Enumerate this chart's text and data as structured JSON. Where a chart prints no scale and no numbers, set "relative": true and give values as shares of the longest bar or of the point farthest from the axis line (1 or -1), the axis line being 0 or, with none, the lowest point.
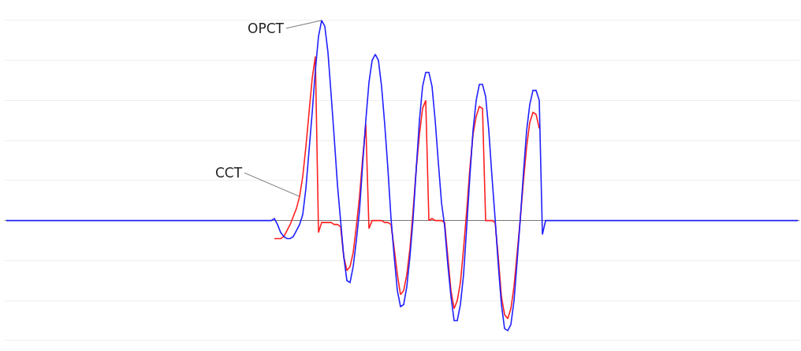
{
  "chart_data": {
    "type": "line",
    "relative": true,
    "grid": "y",
    "legend": false,
    "tick_labels": false,
    "marker": "none",
    "line_style": "solid",
    "categories": [
      null,
      null,
      null,
      null,
      null,
      null,
      null,
      null,
      null,
      null,
      null,
      null,
      null,
      null,
      null,
      null,
      null,
      null,
      null,
      null,
      null,
      null,
      null,
      null,
      null,
      null,
      null,
      null,
      null,
      null,
      null,
      null,
      null,
      null,
      null,
      null,
      null,
      null,
      null,
      null,
      null,
      null,
      null,
      null,
      null,
      null,
      null,
      null,
      null,
      null,
      null,
      null,
      null,
      null,
      null,
      null,
      null,
      null,
      null,
      null,
      null,
      null,
      null,
      null,
      null,
      null,
      null,
      null,
      null,
      null,
      null,
      null,
      null,
      null,
      null,
      null,
      null,
      null,
      null,
      null,
      null,
      null,
      null,
      null,
      null,
      null,
      null,
      null,
      null,
      null,
      null,
      null,
      null,
      null,
      null,
      null,
      null,
      null,
      null,
      null,
      null,
      null,
      null,
      null,
      null,
      null,
      null,
      null,
      null,
      null,
      null,
      null,
      null,
      null,
      null,
      null,
      null,
      null,
      null,
      null,
      null,
      null,
      null,
      null,
      null,
      null,
      null,
      null,
      null,
      null,
      null,
      null,
      null,
      null,
      null,
      null,
      null,
      null,
      null,
      null,
      null,
      null,
      null,
      null,
      null,
      null,
      null,
      null,
      null,
      null,
      null,
      null,
      null,
      null,
      null,
      null,
      null,
      null,
      null,
      null,
      null,
      null,
      null,
      null,
      null,
      null,
      null,
      null,
      null,
      null,
      null,
      null,
      null,
      null,
      null,
      null,
      null,
      null,
      null,
      null,
      null,
      null,
      null,
      null,
      null,
      null,
      null,
      null,
      null,
      null,
      null,
      null,
      null,
      null,
      null,
      null,
      null,
      null,
      null,
      null,
      null,
      null,
      null,
      null,
      null,
      null,
      null,
      null,
      null,
      null,
      null,
      null,
      null,
      null,
      null,
      null,
      null,
      null,
      null,
      null,
      null,
      null,
      null,
      null,
      null,
      null,
      null,
      null,
      null,
      null,
      null,
      null,
      null,
      null,
      null,
      null,
      null,
      null,
      null,
      null,
      null,
      null,
      null,
      null,
      null,
      null,
      null,
      null,
      null,
      null,
      null,
      null
    ],
    "series": [
      {
        "name": "OPCT",
        "color": "#2020ff",
        "values": [
          0,
          0,
          0,
          0,
          0,
          0,
          0,
          0,
          0,
          0,
          0,
          0,
          0,
          0,
          0,
          0,
          0,
          0,
          0,
          0,
          0,
          0,
          0,
          0,
          0,
          0,
          0,
          0,
          0,
          0,
          0,
          0,
          0,
          0,
          0,
          0,
          0,
          0,
          0,
          0,
          0,
          0,
          0,
          0,
          0,
          0,
          0,
          0,
          0,
          0,
          0,
          0,
          0,
          0,
          0,
          0,
          0,
          0,
          0,
          0,
          0,
          0,
          0,
          0,
          0,
          0,
          0,
          0,
          0,
          0,
          0,
          0,
          0,
          0,
          0,
          0,
          0,
          0,
          0,
          0,
          0,
          0,
          0,
          0,
          0,
          0.01,
          -0.02,
          -0.06,
          -0.08,
          -0.09,
          -0.09,
          -0.08,
          -0.05,
          -0.02,
          0.03,
          0.16,
          0.35,
          0.54,
          0.75,
          0.92,
          1,
          0.97,
          0.84,
          0.63,
          0.41,
          0.18,
          0,
          -0.18,
          -0.3,
          -0.31,
          -0.23,
          -0.1,
          0.05,
          0.28,
          0.5,
          0.69,
          0.8,
          0.83,
          0.8,
          0.67,
          0.48,
          0.26,
          0.01,
          -0.18,
          -0.35,
          -0.43,
          -0.42,
          -0.33,
          -0.18,
          0.01,
          0.26,
          0.5,
          0.67,
          0.74,
          0.74,
          0.67,
          0.5,
          0.29,
          0.09,
          -0.03,
          -0.22,
          -0.38,
          -0.5,
          -0.5,
          -0.42,
          -0.27,
          -0.03,
          0.22,
          0.45,
          0.6,
          0.68,
          0.68,
          0.62,
          0.45,
          0.22,
          0.01,
          -0.22,
          -0.42,
          -0.54,
          -0.55,
          -0.52,
          -0.4,
          -0.2,
          0.01,
          0.24,
          0.45,
          0.58,
          0.65,
          0.65,
          0.6,
          -0.07,
          0,
          0,
          0,
          0,
          0,
          0,
          0,
          0,
          0,
          0,
          0,
          0,
          0,
          0,
          0,
          0,
          0,
          0,
          0,
          0,
          0,
          0,
          0,
          0,
          0,
          0,
          0,
          0,
          0,
          0,
          0,
          0,
          0,
          0,
          0,
          0,
          0,
          0,
          0,
          0,
          0,
          0,
          0,
          0,
          0,
          0,
          0,
          0,
          0,
          0,
          0,
          0,
          0,
          0,
          0,
          0,
          0,
          0,
          0,
          0,
          0,
          0,
          0,
          0,
          0,
          0,
          0,
          0,
          0,
          0,
          0,
          0,
          0,
          0,
          0,
          0,
          0,
          0,
          0,
          0,
          0
        ]
      },
      {
        "name": "CCT",
        "color": "#ff2020",
        "values": [
          null,
          null,
          null,
          null,
          null,
          null,
          null,
          null,
          null,
          null,
          null,
          null,
          null,
          null,
          null,
          null,
          null,
          null,
          null,
          null,
          null,
          null,
          null,
          null,
          null,
          null,
          null,
          null,
          null,
          null,
          null,
          null,
          null,
          null,
          null,
          null,
          null,
          null,
          null,
          null,
          null,
          null,
          null,
          null,
          null,
          null,
          null,
          null,
          null,
          null,
          null,
          null,
          null,
          null,
          null,
          null,
          null,
          null,
          null,
          null,
          null,
          null,
          null,
          null,
          null,
          null,
          null,
          null,
          null,
          null,
          null,
          null,
          null,
          null,
          null,
          null,
          null,
          null,
          null,
          null,
          null,
          null,
          null,
          null,
          null,
          -0.09,
          -0.09,
          -0.09,
          -0.08,
          -0.05,
          -0.02,
          0.02,
          0.06,
          0.12,
          0.22,
          0.37,
          0.54,
          0.71,
          0.82,
          -0.06,
          -0.01,
          -0.01,
          -0.01,
          -0.01,
          -0.02,
          -0.02,
          -0.03,
          -0.18,
          -0.25,
          -0.23,
          -0.16,
          -0.03,
          0.12,
          0.31,
          0.48,
          -0.04,
          0,
          0,
          0,
          0,
          -0.01,
          -0.01,
          -0.02,
          -0.14,
          -0.27,
          -0.37,
          -0.35,
          -0.27,
          -0.14,
          0.05,
          0.26,
          0.43,
          0.56,
          0.6,
          0,
          0.01,
          0,
          0,
          0,
          -0.01,
          -0.18,
          -0.35,
          -0.44,
          -0.4,
          -0.31,
          -0.14,
          0.05,
          0.26,
          0.43,
          0.52,
          0.57,
          0.56,
          0,
          0,
          0,
          -0.01,
          -0.18,
          -0.38,
          -0.47,
          -0.49,
          -0.44,
          -0.33,
          -0.16,
          0.01,
          0.2,
          0.37,
          0.49,
          0.54,
          0.53,
          0.46,
          null,
          null,
          null,
          null,
          null,
          null,
          null,
          null,
          null,
          null,
          null,
          null,
          null,
          null,
          null,
          null,
          null,
          null,
          null,
          null,
          null,
          null,
          null,
          null,
          null,
          null,
          null,
          null,
          null,
          null,
          null,
          null,
          null,
          null,
          null,
          null,
          null,
          null,
          null,
          null,
          null,
          null,
          null,
          null,
          null,
          null,
          null,
          null,
          null,
          null,
          null,
          null,
          null,
          null,
          null,
          null,
          null,
          null,
          null,
          null,
          null,
          null,
          null,
          null,
          null,
          null,
          null,
          null,
          null,
          null,
          null,
          null,
          null,
          null,
          null,
          null,
          null,
          null,
          null,
          null,
          null,
          null
        ]
      }
    ]
  }
}
